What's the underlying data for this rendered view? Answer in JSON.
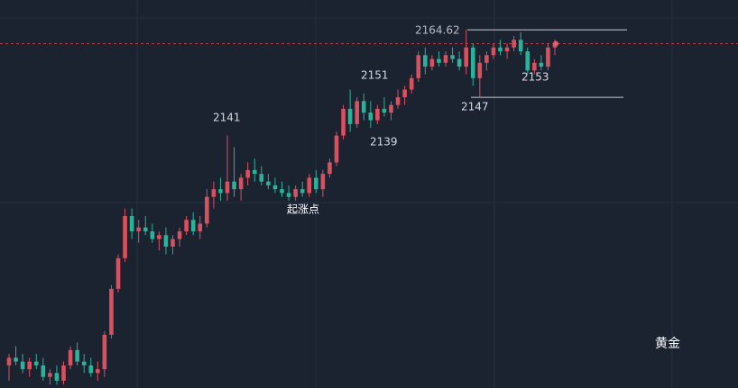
{
  "chart_data": {
    "type": "candlestick",
    "title": "黄金",
    "up_color": "#d9505f",
    "down_color": "#29b39a",
    "ylim": [
      2071.1,
      2172.4
    ],
    "levels": [
      2164.62,
      2147
    ],
    "current_price": 2161,
    "annotations": [
      "2164.62",
      "2151",
      "2141",
      "2139",
      "2147",
      "2153",
      "起涨点"
    ],
    "open": [
      2077,
      2079,
      2078,
      2076,
      2078,
      2077,
      2074,
      2075,
      2073,
      2077,
      2081,
      2078,
      2077,
      2075,
      2076,
      2085,
      2097,
      2105,
      2116,
      2112,
      2113,
      2112,
      2110,
      2111,
      2108,
      2110,
      2112,
      2115,
      2112,
      2114,
      2121,
      2123,
      2122,
      2125,
      2123,
      2126,
      2128,
      2127,
      2125,
      2124,
      2123,
      2122,
      2121,
      2123,
      2122,
      2126,
      2123,
      2127,
      2130,
      2137,
      2144,
      2140,
      2146,
      2143,
      2141,
      2144,
      2143,
      2145,
      2147,
      2149,
      2152,
      2158,
      2155,
      2157,
      2156,
      2158,
      2157,
      2155,
      2160,
      2152,
      2156,
      2158,
      2160,
      2159,
      2160,
      2162,
      2159,
      2154,
      2156,
      2155,
      2160
    ],
    "high": [
      2080,
      2082,
      2080,
      2079,
      2080,
      2079,
      2076,
      2077,
      2078,
      2082,
      2083,
      2080,
      2079,
      2078,
      2086,
      2098,
      2106,
      2118,
      2118,
      2115,
      2116,
      2114,
      2112,
      2113,
      2111,
      2113,
      2116,
      2117,
      2116,
      2123,
      2125,
      2126,
      2137,
      2134,
      2127,
      2130,
      2131,
      2129,
      2127,
      2126,
      2125,
      2124,
      2124,
      2125,
      2127,
      2128,
      2128,
      2131,
      2138,
      2145,
      2149,
      2147,
      2148,
      2146,
      2145,
      2147,
      2146,
      2149,
      2150,
      2153,
      2159,
      2160,
      2158,
      2159,
      2159,
      2160,
      2159,
      2164.62,
      2161,
      2158,
      2159,
      2161,
      2162,
      2161,
      2163,
      2164,
      2160,
      2157,
      2158,
      2161,
      2162
    ],
    "low": [
      2073,
      2077,
      2075,
      2074,
      2076,
      2073,
      2072,
      2072,
      2072,
      2076,
      2077,
      2075,
      2074,
      2073,
      2074,
      2084,
      2096,
      2104,
      2110,
      2109,
      2111,
      2109,
      2107,
      2106,
      2106,
      2108,
      2111,
      2111,
      2110,
      2113,
      2118,
      2120,
      2120,
      2121,
      2120,
      2124,
      2125,
      2124,
      2123,
      2122,
      2121,
      2120,
      2120,
      2121,
      2121,
      2122,
      2121,
      2126,
      2129,
      2136,
      2138,
      2139,
      2141,
      2139,
      2140,
      2142,
      2141,
      2144,
      2145,
      2148,
      2151,
      2153,
      2154,
      2155,
      2155,
      2156,
      2154,
      2153,
      2150,
      2147,
      2154,
      2157,
      2158,
      2157,
      2159,
      2158,
      2153,
      2153,
      2154,
      2154,
      2158
    ],
    "close": [
      2079,
      2078,
      2076,
      2078,
      2077,
      2074,
      2075,
      2073,
      2077,
      2081,
      2078,
      2077,
      2075,
      2076,
      2085,
      2097,
      2105,
      2116,
      2112,
      2113,
      2112,
      2110,
      2111,
      2108,
      2110,
      2112,
      2115,
      2112,
      2114,
      2121,
      2123,
      2122,
      2125,
      2123,
      2126,
      2128,
      2127,
      2125,
      2124,
      2123,
      2122,
      2121,
      2123,
      2122,
      2126,
      2123,
      2127,
      2130,
      2137,
      2144,
      2140,
      2146,
      2143,
      2141,
      2144,
      2143,
      2145,
      2147,
      2149,
      2152,
      2158,
      2155,
      2157,
      2156,
      2158,
      2157,
      2155,
      2160,
      2152,
      2156,
      2158,
      2160,
      2159,
      2160,
      2162,
      2159,
      2154,
      2156,
      2155,
      2160,
      2161
    ]
  }
}
